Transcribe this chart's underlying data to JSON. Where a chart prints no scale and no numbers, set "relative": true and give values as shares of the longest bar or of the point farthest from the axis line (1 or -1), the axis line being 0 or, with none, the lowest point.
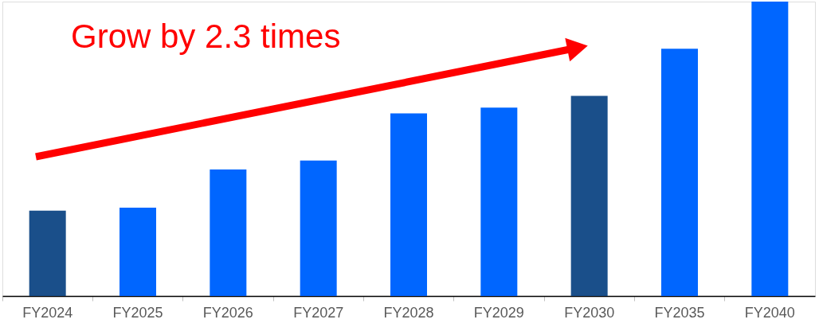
{
  "chart_data": {
    "type": "bar",
    "relative": true,
    "categories": [
      "FY2024",
      "FY2025",
      "FY2026",
      "FY2027",
      "FY2028",
      "FY2029",
      "FY2030",
      "FY2035",
      "FY2040"
    ],
    "values": [
      0.29,
      0.3,
      0.43,
      0.46,
      0.62,
      0.64,
      0.68,
      0.84,
      1
    ],
    "colors": [
      "#1a4f8a",
      "#0066ff",
      "#0066ff",
      "#0066ff",
      "#0066ff",
      "#0066ff",
      "#1a4f8a",
      "#0066ff",
      "#0066ff"
    ],
    "annotations": [
      "Grow by 2.3 times"
    ],
    "grid": false
  }
}
